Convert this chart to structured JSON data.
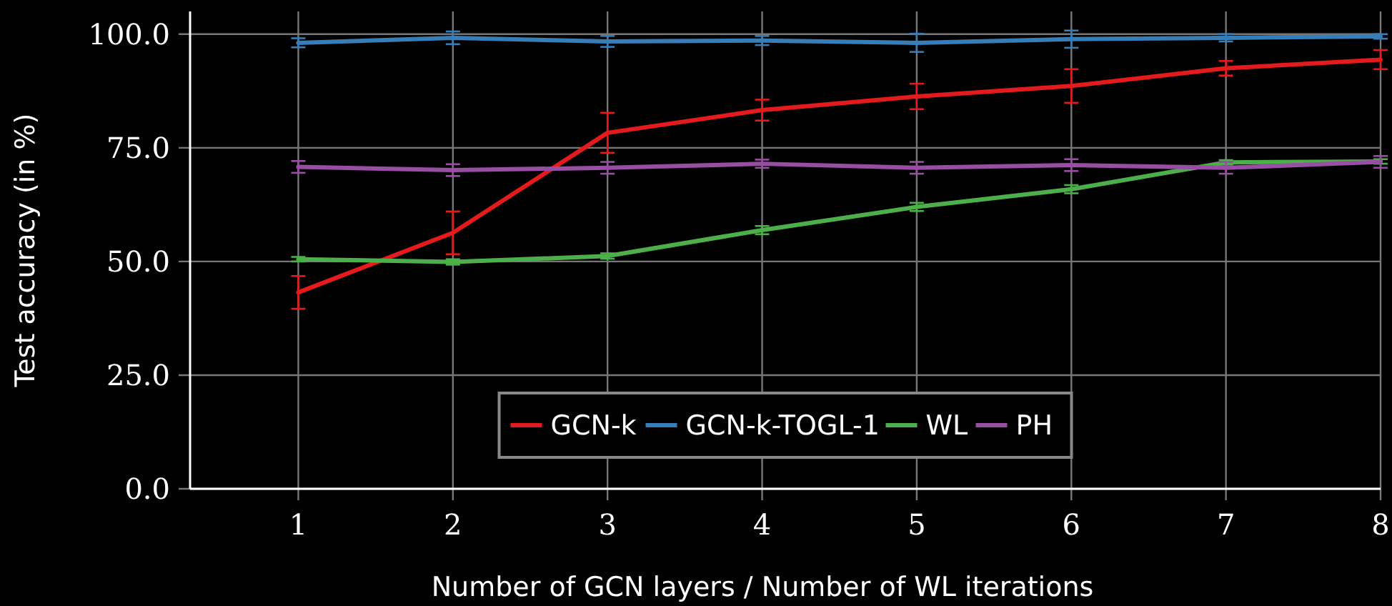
{
  "chart_data": {
    "type": "line",
    "xlabel": "Number of GCN layers / Number of WL iterations",
    "ylabel": "Test accuracy (in %)",
    "x": [
      1,
      2,
      3,
      4,
      5,
      6,
      7,
      8
    ],
    "xlim": [
      0.3,
      8
    ],
    "xticks": [
      1,
      2,
      3,
      4,
      5,
      6,
      7,
      8
    ],
    "ylim": [
      0,
      105
    ],
    "yticks": [
      {
        "value": 0,
        "label": "0.0"
      },
      {
        "value": 25,
        "label": "25.0"
      },
      {
        "value": 50,
        "label": "50.0"
      },
      {
        "value": 75,
        "label": "75.0"
      },
      {
        "value": 100,
        "label": "100.0"
      }
    ],
    "grid": true,
    "legend": "bottom",
    "marker": "none",
    "line_style": "solid",
    "series": [
      {
        "name": "GCN-k",
        "color": "#e41a1c",
        "values": [
          43.2,
          56.3,
          78.3,
          83.3,
          86.3,
          88.6,
          92.5,
          94.4
        ],
        "errors": [
          3.6,
          4.7,
          4.4,
          2.3,
          2.8,
          3.7,
          1.6,
          2.1
        ]
      },
      {
        "name": "GCN-k-TOGL-1",
        "color": "#377eb8",
        "values": [
          98.1,
          99.2,
          98.4,
          98.6,
          98.1,
          98.9,
          99.2,
          99.5
        ],
        "errors": [
          1,
          1.4,
          1.2,
          1,
          2,
          1.9,
          0.8,
          0.5
        ]
      },
      {
        "name": "WL",
        "color": "#4daf4a",
        "values": [
          50.5,
          49.9,
          51.2,
          56.9,
          62.0,
          65.9,
          71.8,
          72.0
        ],
        "errors": [
          0.5,
          0.6,
          0.6,
          0.9,
          0.9,
          0.9,
          0.5,
          0.5
        ]
      },
      {
        "name": "PH",
        "color": "#984ea3",
        "values": [
          70.8,
          70.1,
          70.6,
          71.5,
          70.6,
          71.2,
          70.6,
          71.9
        ],
        "errors": [
          1.3,
          1.3,
          1.3,
          0.9,
          1.3,
          1.3,
          1.3,
          1.3
        ]
      }
    ]
  }
}
